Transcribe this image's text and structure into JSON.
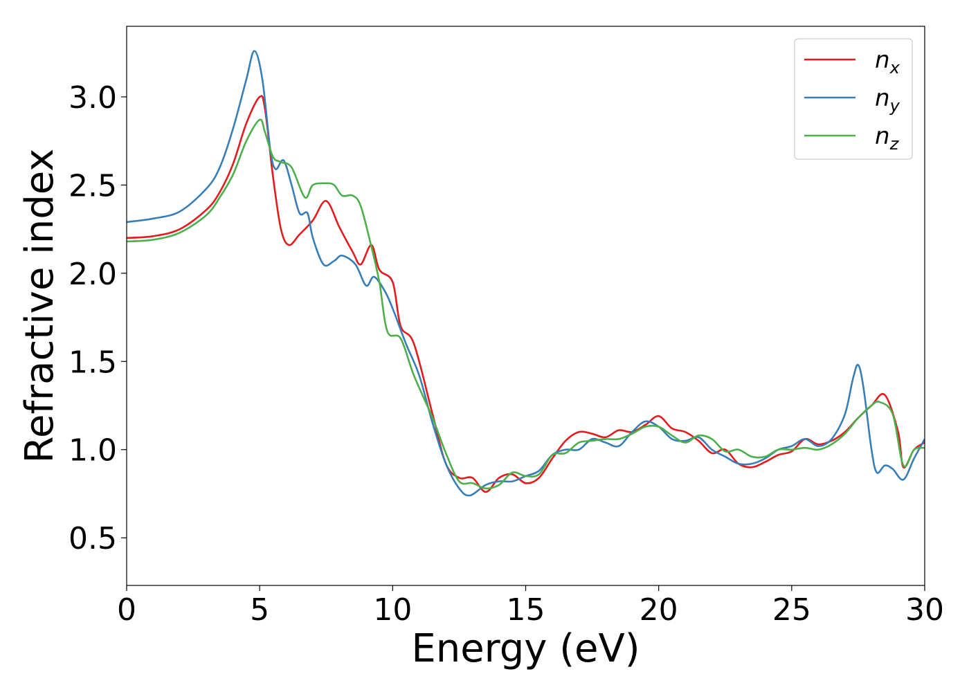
{
  "chart_data": {
    "type": "line",
    "xlabel": "Energy (eV)",
    "ylabel": "Refractive index",
    "xlim": [
      0,
      30
    ],
    "ylim": [
      0.23,
      3.4
    ],
    "x_ticks": [
      "0",
      "5",
      "10",
      "15",
      "20",
      "25",
      "30"
    ],
    "y_ticks": [
      "0.5",
      "1.0",
      "1.5",
      "2.0",
      "2.5",
      "3.0"
    ],
    "grid": false,
    "legend_position": "top-right",
    "series": [
      {
        "name": "n",
        "subscript": "x",
        "color": "#e41a1c",
        "points": [
          [
            0,
            2.2
          ],
          [
            1,
            2.21
          ],
          [
            2,
            2.25
          ],
          [
            3,
            2.36
          ],
          [
            3.5,
            2.46
          ],
          [
            4,
            2.62
          ],
          [
            4.5,
            2.85
          ],
          [
            5,
            3.0
          ],
          [
            5.2,
            2.93
          ],
          [
            5.5,
            2.55
          ],
          [
            5.8,
            2.25
          ],
          [
            6.1,
            2.16
          ],
          [
            6.5,
            2.22
          ],
          [
            7,
            2.3
          ],
          [
            7.5,
            2.41
          ],
          [
            8,
            2.26
          ],
          [
            8.5,
            2.12
          ],
          [
            8.8,
            2.05
          ],
          [
            9.2,
            2.16
          ],
          [
            9.5,
            2.02
          ],
          [
            10,
            1.95
          ],
          [
            10.3,
            1.7
          ],
          [
            10.8,
            1.6
          ],
          [
            11.5,
            1.2
          ],
          [
            12,
            0.92
          ],
          [
            12.5,
            0.84
          ],
          [
            13,
            0.84
          ],
          [
            13.5,
            0.76
          ],
          [
            14,
            0.84
          ],
          [
            14.5,
            0.86
          ],
          [
            15,
            0.81
          ],
          [
            15.5,
            0.84
          ],
          [
            16,
            0.95
          ],
          [
            16.5,
            1.05
          ],
          [
            17,
            1.1
          ],
          [
            17.5,
            1.09
          ],
          [
            18,
            1.07
          ],
          [
            18.5,
            1.11
          ],
          [
            19,
            1.1
          ],
          [
            19.5,
            1.14
          ],
          [
            20,
            1.19
          ],
          [
            20.5,
            1.12
          ],
          [
            21,
            1.1
          ],
          [
            21.5,
            1.05
          ],
          [
            22,
            0.98
          ],
          [
            22.5,
            1.0
          ],
          [
            23,
            0.92
          ],
          [
            23.5,
            0.9
          ],
          [
            24,
            0.93
          ],
          [
            24.5,
            0.97
          ],
          [
            25,
            0.99
          ],
          [
            25.5,
            1.06
          ],
          [
            26,
            1.03
          ],
          [
            26.5,
            1.05
          ],
          [
            27,
            1.1
          ],
          [
            27.5,
            1.18
          ],
          [
            28,
            1.25
          ],
          [
            28.5,
            1.31
          ],
          [
            29,
            1.1
          ],
          [
            29.2,
            0.9
          ],
          [
            29.6,
            1.0
          ],
          [
            30,
            1.04
          ]
        ]
      },
      {
        "name": "n",
        "subscript": "y",
        "color": "#377eb8",
        "points": [
          [
            0,
            2.29
          ],
          [
            1,
            2.31
          ],
          [
            2,
            2.35
          ],
          [
            3,
            2.48
          ],
          [
            3.5,
            2.6
          ],
          [
            4,
            2.82
          ],
          [
            4.5,
            3.1
          ],
          [
            4.8,
            3.26
          ],
          [
            5.1,
            3.1
          ],
          [
            5.4,
            2.7
          ],
          [
            5.6,
            2.59
          ],
          [
            5.9,
            2.64
          ],
          [
            6.2,
            2.5
          ],
          [
            6.5,
            2.34
          ],
          [
            6.8,
            2.34
          ],
          [
            7,
            2.2
          ],
          [
            7.4,
            2.05
          ],
          [
            7.8,
            2.07
          ],
          [
            8.1,
            2.1
          ],
          [
            8.6,
            2.05
          ],
          [
            9,
            1.93
          ],
          [
            9.3,
            1.98
          ],
          [
            9.7,
            1.9
          ],
          [
            10,
            1.8
          ],
          [
            10.5,
            1.6
          ],
          [
            11,
            1.42
          ],
          [
            11.5,
            1.15
          ],
          [
            12,
            0.92
          ],
          [
            12.5,
            0.78
          ],
          [
            12.9,
            0.74
          ],
          [
            13.5,
            0.8
          ],
          [
            14,
            0.82
          ],
          [
            14.5,
            0.82
          ],
          [
            15,
            0.85
          ],
          [
            15.5,
            0.88
          ],
          [
            16,
            0.97
          ],
          [
            16.5,
            1.0
          ],
          [
            17,
            1.0
          ],
          [
            17.5,
            1.06
          ],
          [
            18,
            1.04
          ],
          [
            18.5,
            1.02
          ],
          [
            19,
            1.1
          ],
          [
            19.5,
            1.16
          ],
          [
            20,
            1.13
          ],
          [
            20.5,
            1.06
          ],
          [
            21,
            1.05
          ],
          [
            21.5,
            1.07
          ],
          [
            22,
            1.0
          ],
          [
            22.5,
            0.96
          ],
          [
            23,
            0.92
          ],
          [
            23.5,
            0.92
          ],
          [
            24,
            0.95
          ],
          [
            24.5,
            1.0
          ],
          [
            25,
            1.02
          ],
          [
            25.5,
            1.06
          ],
          [
            26,
            1.02
          ],
          [
            26.5,
            1.06
          ],
          [
            27,
            1.2
          ],
          [
            27.3,
            1.4
          ],
          [
            27.5,
            1.48
          ],
          [
            27.7,
            1.35
          ],
          [
            28,
            1.0
          ],
          [
            28.2,
            0.87
          ],
          [
            28.5,
            0.91
          ],
          [
            28.8,
            0.89
          ],
          [
            29.2,
            0.83
          ],
          [
            29.6,
            0.95
          ],
          [
            30,
            1.06
          ]
        ]
      },
      {
        "name": "n",
        "subscript": "z",
        "color": "#4daf4a",
        "points": [
          [
            0,
            2.18
          ],
          [
            1,
            2.19
          ],
          [
            2,
            2.23
          ],
          [
            3,
            2.33
          ],
          [
            3.5,
            2.43
          ],
          [
            4,
            2.56
          ],
          [
            4.5,
            2.75
          ],
          [
            5,
            2.87
          ],
          [
            5.2,
            2.8
          ],
          [
            5.5,
            2.66
          ],
          [
            5.8,
            2.63
          ],
          [
            6.2,
            2.6
          ],
          [
            6.7,
            2.43
          ],
          [
            7,
            2.5
          ],
          [
            7.5,
            2.51
          ],
          [
            7.8,
            2.5
          ],
          [
            8.1,
            2.44
          ],
          [
            8.5,
            2.44
          ],
          [
            8.8,
            2.38
          ],
          [
            9.2,
            2.15
          ],
          [
            9.5,
            1.95
          ],
          [
            9.8,
            1.67
          ],
          [
            10.3,
            1.63
          ],
          [
            10.8,
            1.42
          ],
          [
            11.5,
            1.18
          ],
          [
            12,
            0.98
          ],
          [
            12.5,
            0.82
          ],
          [
            13,
            0.81
          ],
          [
            13.5,
            0.78
          ],
          [
            14,
            0.8
          ],
          [
            14.5,
            0.87
          ],
          [
            15,
            0.85
          ],
          [
            15.5,
            0.86
          ],
          [
            16,
            0.97
          ],
          [
            16.5,
            0.98
          ],
          [
            17,
            1.04
          ],
          [
            17.5,
            1.05
          ],
          [
            18,
            1.06
          ],
          [
            18.5,
            1.06
          ],
          [
            19,
            1.09
          ],
          [
            19.5,
            1.13
          ],
          [
            20,
            1.13
          ],
          [
            20.5,
            1.08
          ],
          [
            21,
            1.04
          ],
          [
            21.5,
            1.08
          ],
          [
            22,
            1.06
          ],
          [
            22.5,
            0.99
          ],
          [
            23,
            1.0
          ],
          [
            23.5,
            0.96
          ],
          [
            24,
            0.96
          ],
          [
            24.5,
            1.0
          ],
          [
            25,
            1.0
          ],
          [
            25.5,
            1.01
          ],
          [
            26,
            1.0
          ],
          [
            26.5,
            1.03
          ],
          [
            27,
            1.09
          ],
          [
            27.5,
            1.18
          ],
          [
            28,
            1.25
          ],
          [
            28.3,
            1.27
          ],
          [
            28.8,
            1.2
          ],
          [
            29.2,
            0.91
          ],
          [
            29.6,
            1.0
          ],
          [
            30,
            1.01
          ]
        ]
      }
    ]
  }
}
